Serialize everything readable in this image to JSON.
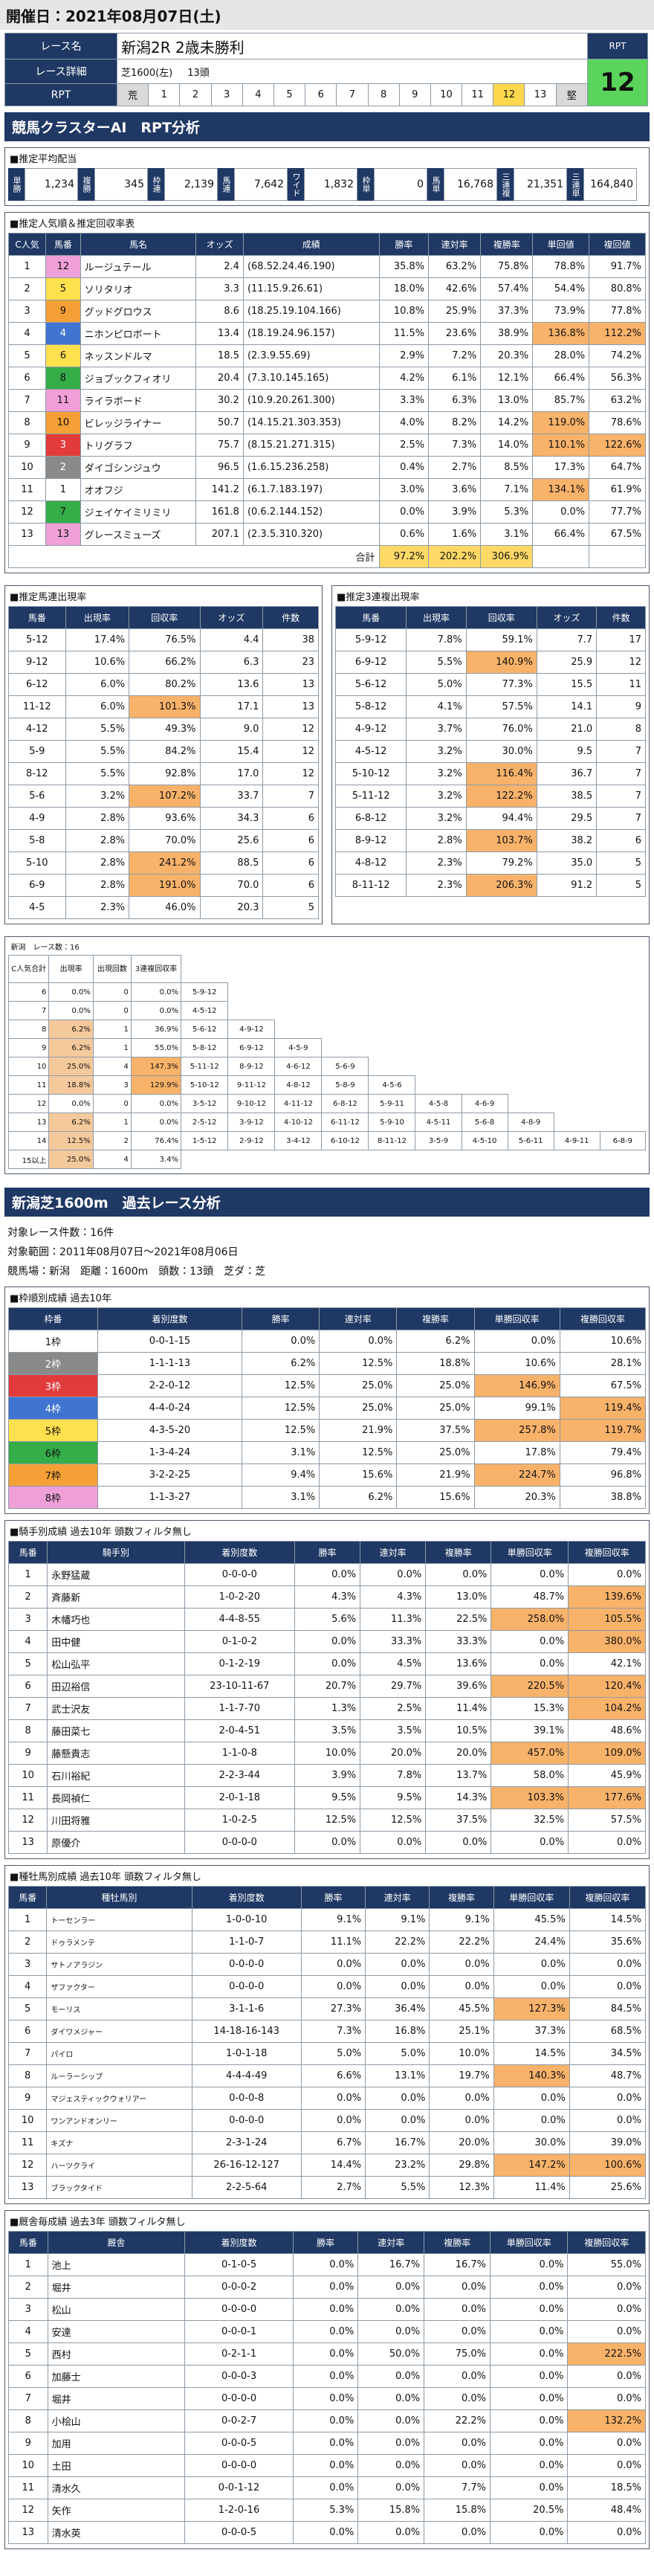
{
  "header": {
    "title": "開催日：2021年08月07日(土)"
  },
  "race": {
    "name_label": "レース名",
    "name": "新潟2R 2歳未勝利",
    "detail_label": "レース詳細",
    "detail": "芝1600(左)",
    "heads": "13頭",
    "rpt_label": "RPT",
    "rpt_scale": [
      "荒",
      "1",
      "2",
      "3",
      "4",
      "5",
      "6",
      "7",
      "8",
      "9",
      "10",
      "11",
      "12",
      "13",
      "堅"
    ],
    "rpt_box_label": "RPT",
    "rpt_value": "12"
  },
  "banner": "競馬クラスターAI　RPT分析",
  "payout": {
    "title": "■推定平均配当",
    "items": [
      {
        "label": "単勝",
        "value": "1,234"
      },
      {
        "label": "複勝",
        "value": "345"
      },
      {
        "label": "枠連",
        "value": "2,139"
      },
      {
        "label": "馬連",
        "value": "7,642"
      },
      {
        "label": "ワイド",
        "value": "1,832"
      },
      {
        "label": "枠単",
        "value": "0"
      },
      {
        "label": "馬単",
        "value": "16,768"
      },
      {
        "label": "三連複",
        "value": "21,351"
      },
      {
        "label": "三連単",
        "value": "164,840"
      }
    ]
  },
  "popularity": {
    "title": "■推定人気順＆推定回収率表",
    "columns": [
      "C人気",
      "馬番",
      "馬名",
      "オッズ",
      "成績",
      "勝率",
      "連対率",
      "複勝率",
      "単回値",
      "複回値"
    ],
    "rows": [
      [
        "1",
        "12",
        "ルージュテール",
        "2.4",
        "(68.52.24.46.190)",
        "35.8%",
        "63.2%",
        "75.8%",
        "78.8%",
        "91.7%"
      ],
      [
        "2",
        "5",
        "ソリタリオ",
        "3.3",
        "(11.15.9.26.61)",
        "18.0%",
        "42.6%",
        "57.4%",
        "54.4%",
        "80.8%"
      ],
      [
        "3",
        "9",
        "グッドグロウス",
        "8.6",
        "(18.25.19.104.166)",
        "10.8%",
        "25.9%",
        "37.3%",
        "73.9%",
        "77.8%"
      ],
      [
        "4",
        "4",
        "ニホンピロボート",
        "13.4",
        "(18.19.24.96.157)",
        "11.5%",
        "23.6%",
        "38.9%",
        "136.8%",
        "112.2%"
      ],
      [
        "5",
        "6",
        "ネッスンドルマ",
        "18.5",
        "(2.3.9.55.69)",
        "2.9%",
        "7.2%",
        "20.3%",
        "28.0%",
        "74.2%"
      ],
      [
        "6",
        "8",
        "ジョブックフィオリ",
        "20.4",
        "(7.3.10.145.165)",
        "4.2%",
        "6.1%",
        "12.1%",
        "66.4%",
        "56.3%"
      ],
      [
        "7",
        "11",
        "ライラボード",
        "30.2",
        "(10.9.20.261.300)",
        "3.3%",
        "6.3%",
        "13.0%",
        "85.7%",
        "63.2%"
      ],
      [
        "8",
        "10",
        "ビレッジライナー",
        "50.7",
        "(14.15.21.303.353)",
        "4.0%",
        "8.2%",
        "14.2%",
        "119.0%",
        "78.6%"
      ],
      [
        "9",
        "3",
        "トリグラフ",
        "75.7",
        "(8.15.21.271.315)",
        "2.5%",
        "7.3%",
        "14.0%",
        "110.1%",
        "122.6%"
      ],
      [
        "10",
        "2",
        "ダイゴシンジュウ",
        "96.5",
        "(1.6.15.236.258)",
        "0.4%",
        "2.7%",
        "8.5%",
        "17.3%",
        "64.7%"
      ],
      [
        "11",
        "1",
        "オオフジ",
        "141.2",
        "(6.1.7.183.197)",
        "3.0%",
        "3.6%",
        "7.1%",
        "134.1%",
        "61.9%"
      ],
      [
        "12",
        "7",
        "ジェイケイミリミリ",
        "161.8",
        "(0.6.2.144.152)",
        "0.0%",
        "3.9%",
        "5.3%",
        "0.0%",
        "77.7%"
      ],
      [
        "13",
        "13",
        "グレースミューズ",
        "207.1",
        "(2.3.5.310.320)",
        "0.6%",
        "1.6%",
        "3.1%",
        "66.4%",
        "67.5%"
      ]
    ],
    "total": {
      "label": "合計",
      "values": [
        "97.2%",
        "202.2%",
        "306.9%"
      ]
    }
  },
  "quinella": {
    "title": "■推定馬連出現率",
    "columns": [
      "馬番",
      "出現率",
      "回収率",
      "オッズ",
      "件数"
    ],
    "rows": [
      [
        "5-12",
        "17.4%",
        "76.5%",
        "4.4",
        "38"
      ],
      [
        "9-12",
        "10.6%",
        "66.2%",
        "6.3",
        "23"
      ],
      [
        "6-12",
        "6.0%",
        "80.2%",
        "13.6",
        "13"
      ],
      [
        "11-12",
        "6.0%",
        "101.3%",
        "17.1",
        "13"
      ],
      [
        "4-12",
        "5.5%",
        "49.3%",
        "9.0",
        "12"
      ],
      [
        "5-9",
        "5.5%",
        "84.2%",
        "15.4",
        "12"
      ],
      [
        "8-12",
        "5.5%",
        "92.8%",
        "17.0",
        "12"
      ],
      [
        "5-6",
        "3.2%",
        "107.2%",
        "33.7",
        "7"
      ],
      [
        "4-9",
        "2.8%",
        "93.6%",
        "34.3",
        "6"
      ],
      [
        "5-8",
        "2.8%",
        "70.0%",
        "25.6",
        "6"
      ],
      [
        "5-10",
        "2.8%",
        "241.2%",
        "88.5",
        "6"
      ],
      [
        "6-9",
        "2.8%",
        "191.0%",
        "70.0",
        "6"
      ],
      [
        "4-5",
        "2.3%",
        "46.0%",
        "20.3",
        "5"
      ]
    ]
  },
  "trio": {
    "title": "■推定3連複出現率",
    "columns": [
      "馬番",
      "出現率",
      "回収率",
      "オッズ",
      "件数"
    ],
    "rows": [
      [
        "5-9-12",
        "7.8%",
        "59.1%",
        "7.7",
        "17"
      ],
      [
        "6-9-12",
        "5.5%",
        "140.9%",
        "25.9",
        "12"
      ],
      [
        "5-6-12",
        "5.0%",
        "77.3%",
        "15.5",
        "11"
      ],
      [
        "5-8-12",
        "4.1%",
        "57.5%",
        "14.1",
        "9"
      ],
      [
        "4-9-12",
        "3.7%",
        "76.0%",
        "21.0",
        "8"
      ],
      [
        "4-5-12",
        "3.2%",
        "30.0%",
        "9.5",
        "7"
      ],
      [
        "5-10-12",
        "3.2%",
        "116.4%",
        "36.7",
        "7"
      ],
      [
        "5-11-12",
        "3.2%",
        "122.2%",
        "38.5",
        "7"
      ],
      [
        "6-8-12",
        "3.2%",
        "94.4%",
        "29.5",
        "7"
      ],
      [
        "8-9-12",
        "2.8%",
        "103.7%",
        "38.2",
        "6"
      ],
      [
        "4-8-12",
        "2.3%",
        "79.2%",
        "35.0",
        "5"
      ],
      [
        "8-11-12",
        "2.3%",
        "206.3%",
        "91.2",
        "5"
      ]
    ]
  },
  "matrix": {
    "title": "新潟　レース数：16",
    "columns": [
      "C人気合計",
      "出現率",
      "出現回数",
      "3連複回収率"
    ],
    "rows": [
      {
        "cells": [
          "6",
          "0.0%",
          "0",
          "0.0%"
        ],
        "combos": [
          "5-9-12"
        ]
      },
      {
        "cells": [
          "7",
          "0.0%",
          "0",
          "0.0%"
        ],
        "combos": [
          "4-5-12"
        ]
      },
      {
        "cells": [
          "8",
          "6.2%",
          "1",
          "36.9%"
        ],
        "combos": [
          "5-6-12",
          "4-9-12"
        ]
      },
      {
        "cells": [
          "9",
          "6.2%",
          "1",
          "55.0%"
        ],
        "combos": [
          "5-8-12",
          "6-9-12",
          "4-5-9"
        ]
      },
      {
        "cells": [
          "10",
          "25.0%",
          "4",
          "147.3%"
        ],
        "combos": [
          "5-11-12",
          "8-9-12",
          "4-6-12",
          "5-6-9"
        ]
      },
      {
        "cells": [
          "11",
          "18.8%",
          "3",
          "129.9%"
        ],
        "combos": [
          "5-10-12",
          "9-11-12",
          "4-8-12",
          "5-8-9",
          "4-5-6"
        ]
      },
      {
        "cells": [
          "12",
          "0.0%",
          "0",
          "0.0%"
        ],
        "combos": [
          "3-5-12",
          "9-10-12",
          "4-11-12",
          "6-8-12",
          "5-9-11",
          "4-5-8",
          "4-6-9"
        ]
      },
      {
        "cells": [
          "13",
          "6.2%",
          "1",
          "0.0%"
        ],
        "combos": [
          "2-5-12",
          "3-9-12",
          "4-10-12",
          "6-11-12",
          "5-9-10",
          "4-5-11",
          "5-6-8",
          "4-8-9"
        ]
      },
      {
        "cells": [
          "14",
          "12.5%",
          "2",
          "76.4%"
        ],
        "combos": [
          "1-5-12",
          "2-9-12",
          "3-4-12",
          "6-10-12",
          "8-11-12",
          "3-5-9",
          "4-5-10",
          "5-6-11",
          "4-9-11",
          "6-8-9"
        ]
      },
      {
        "cells": [
          "15以上",
          "25.0%",
          "4",
          "3.4%"
        ],
        "combos": []
      }
    ]
  },
  "past": {
    "title": "新潟芝1600m　過去レース分析",
    "lines": [
      "対象レース件数：16件",
      "対象範囲：2011年08月07日～2021年08月06日",
      "競馬場：新潟　距離：1600m　頭数：13頭　芝ダ：芝"
    ]
  },
  "frame": {
    "title": "■枠順別成績 過去10年",
    "columns": [
      "枠番",
      "着別度数",
      "勝率",
      "連対率",
      "複勝率",
      "単勝回収率",
      "複勝回収率"
    ],
    "rows": [
      [
        "1枠",
        "0-0-1-15",
        "0.0%",
        "0.0%",
        "6.2%",
        "0.0%",
        "10.6%"
      ],
      [
        "2枠",
        "1-1-1-13",
        "6.2%",
        "12.5%",
        "18.8%",
        "10.6%",
        "28.1%"
      ],
      [
        "3枠",
        "2-2-0-12",
        "12.5%",
        "25.0%",
        "25.0%",
        "146.9%",
        "67.5%"
      ],
      [
        "4枠",
        "4-4-0-24",
        "12.5%",
        "25.0%",
        "25.0%",
        "99.1%",
        "119.4%"
      ],
      [
        "5枠",
        "4-3-5-20",
        "12.5%",
        "21.9%",
        "37.5%",
        "257.8%",
        "119.7%"
      ],
      [
        "6枠",
        "1-3-4-24",
        "3.1%",
        "12.5%",
        "25.0%",
        "17.8%",
        "79.4%"
      ],
      [
        "7枠",
        "3-2-2-25",
        "9.4%",
        "15.6%",
        "21.9%",
        "224.7%",
        "96.8%"
      ],
      [
        "8枠",
        "1-1-3-27",
        "3.1%",
        "6.2%",
        "15.6%",
        "20.3%",
        "38.8%"
      ]
    ]
  },
  "jockey": {
    "title": "■騎手別成績 過去10年 頭数フィルタ無し",
    "columns": [
      "馬番",
      "騎手別",
      "着別度数",
      "勝率",
      "連対率",
      "複勝率",
      "単勝回収率",
      "複勝回収率"
    ],
    "rows": [
      [
        "1",
        "永野猛蔵",
        "0-0-0-0",
        "0.0%",
        "0.0%",
        "0.0%",
        "0.0%",
        "0.0%"
      ],
      [
        "2",
        "斉藤新",
        "1-0-2-20",
        "4.3%",
        "4.3%",
        "13.0%",
        "48.7%",
        "139.6%"
      ],
      [
        "3",
        "木幡巧也",
        "4-4-8-55",
        "5.6%",
        "11.3%",
        "22.5%",
        "258.0%",
        "105.5%"
      ],
      [
        "4",
        "田中健",
        "0-1-0-2",
        "0.0%",
        "33.3%",
        "33.3%",
        "0.0%",
        "380.0%"
      ],
      [
        "5",
        "松山弘平",
        "0-1-2-19",
        "0.0%",
        "4.5%",
        "13.6%",
        "0.0%",
        "42.1%"
      ],
      [
        "6",
        "田辺裕信",
        "23-10-11-67",
        "20.7%",
        "29.7%",
        "39.6%",
        "220.5%",
        "120.4%"
      ],
      [
        "7",
        "武士沢友",
        "1-1-7-70",
        "1.3%",
        "2.5%",
        "11.4%",
        "15.3%",
        "104.2%"
      ],
      [
        "8",
        "藤田菜七",
        "2-0-4-51",
        "3.5%",
        "3.5%",
        "10.5%",
        "39.1%",
        "48.6%"
      ],
      [
        "9",
        "藤懸貴志",
        "1-1-0-8",
        "10.0%",
        "20.0%",
        "20.0%",
        "457.0%",
        "109.0%"
      ],
      [
        "10",
        "石川裕紀",
        "2-2-3-44",
        "3.9%",
        "7.8%",
        "13.7%",
        "58.0%",
        "45.9%"
      ],
      [
        "11",
        "長岡禎仁",
        "2-0-1-18",
        "9.5%",
        "9.5%",
        "14.3%",
        "103.3%",
        "177.6%"
      ],
      [
        "12",
        "川田将雅",
        "1-0-2-5",
        "12.5%",
        "12.5%",
        "37.5%",
        "32.5%",
        "57.5%"
      ],
      [
        "13",
        "原優介",
        "0-0-0-0",
        "0.0%",
        "0.0%",
        "0.0%",
        "0.0%",
        "0.0%"
      ]
    ]
  },
  "sire": {
    "title": "■種牡馬別成績 過去10年 頭数フィルタ無し",
    "columns": [
      "馬番",
      "種牡馬別",
      "着別度数",
      "勝率",
      "連対率",
      "複勝率",
      "単勝回収率",
      "複勝回収率"
    ],
    "rows": [
      [
        "1",
        "トーセンラー",
        "1-0-0-10",
        "9.1%",
        "9.1%",
        "9.1%",
        "45.5%",
        "14.5%"
      ],
      [
        "2",
        "ドゥラメンテ",
        "1-1-0-7",
        "11.1%",
        "22.2%",
        "22.2%",
        "24.4%",
        "35.6%"
      ],
      [
        "3",
        "サトノアラジン",
        "0-0-0-0",
        "0.0%",
        "0.0%",
        "0.0%",
        "0.0%",
        "0.0%"
      ],
      [
        "4",
        "ザファクター",
        "0-0-0-0",
        "0.0%",
        "0.0%",
        "0.0%",
        "0.0%",
        "0.0%"
      ],
      [
        "5",
        "モーリス",
        "3-1-1-6",
        "27.3%",
        "36.4%",
        "45.5%",
        "127.3%",
        "84.5%"
      ],
      [
        "6",
        "ダイワメジャー",
        "14-18-16-143",
        "7.3%",
        "16.8%",
        "25.1%",
        "37.3%",
        "68.5%"
      ],
      [
        "7",
        "パイロ",
        "1-0-1-18",
        "5.0%",
        "5.0%",
        "10.0%",
        "14.5%",
        "34.5%"
      ],
      [
        "8",
        "ルーラーシップ",
        "4-4-4-49",
        "6.6%",
        "13.1%",
        "19.7%",
        "140.3%",
        "48.7%"
      ],
      [
        "9",
        "マジェスティックウォリアー",
        "0-0-0-8",
        "0.0%",
        "0.0%",
        "0.0%",
        "0.0%",
        "0.0%"
      ],
      [
        "10",
        "ワンアンドオンリー",
        "0-0-0-0",
        "0.0%",
        "0.0%",
        "0.0%",
        "0.0%",
        "0.0%"
      ],
      [
        "11",
        "キズナ",
        "2-3-1-24",
        "6.7%",
        "16.7%",
        "20.0%",
        "30.0%",
        "39.0%"
      ],
      [
        "12",
        "ハーツクライ",
        "26-16-12-127",
        "14.4%",
        "23.2%",
        "29.8%",
        "147.2%",
        "100.6%"
      ],
      [
        "13",
        "ブラックタイド",
        "2-2-5-64",
        "2.7%",
        "5.5%",
        "12.3%",
        "11.4%",
        "25.6%"
      ]
    ]
  },
  "stable": {
    "title": "■厩舎毎成績 過去3年 頭数フィルタ無し",
    "columns": [
      "馬番",
      "厩舎",
      "着別度数",
      "勝率",
      "連対率",
      "複勝率",
      "単勝回収率",
      "複勝回収率"
    ],
    "rows": [
      [
        "1",
        "池上",
        "0-1-0-5",
        "0.0%",
        "16.7%",
        "16.7%",
        "0.0%",
        "55.0%"
      ],
      [
        "2",
        "堀井",
        "0-0-0-2",
        "0.0%",
        "0.0%",
        "0.0%",
        "0.0%",
        "0.0%"
      ],
      [
        "3",
        "松山",
        "0-0-0-0",
        "0.0%",
        "0.0%",
        "0.0%",
        "0.0%",
        "0.0%"
      ],
      [
        "4",
        "安達",
        "0-0-0-1",
        "0.0%",
        "0.0%",
        "0.0%",
        "0.0%",
        "0.0%"
      ],
      [
        "5",
        "西村",
        "0-2-1-1",
        "0.0%",
        "50.0%",
        "75.0%",
        "0.0%",
        "222.5%"
      ],
      [
        "6",
        "加藤士",
        "0-0-0-3",
        "0.0%",
        "0.0%",
        "0.0%",
        "0.0%",
        "0.0%"
      ],
      [
        "7",
        "堀井",
        "0-0-0-0",
        "0.0%",
        "0.0%",
        "0.0%",
        "0.0%",
        "0.0%"
      ],
      [
        "8",
        "小桧山",
        "0-0-2-7",
        "0.0%",
        "0.0%",
        "22.2%",
        "0.0%",
        "132.2%"
      ],
      [
        "9",
        "加用",
        "0-0-0-5",
        "0.0%",
        "0.0%",
        "0.0%",
        "0.0%",
        "0.0%"
      ],
      [
        "10",
        "土田",
        "0-0-0-0",
        "0.0%",
        "0.0%",
        "0.0%",
        "0.0%",
        "0.0%"
      ],
      [
        "11",
        "清水久",
        "0-0-1-12",
        "0.0%",
        "0.0%",
        "7.7%",
        "0.0%",
        "18.5%"
      ],
      [
        "12",
        "矢作",
        "1-2-0-16",
        "5.3%",
        "15.8%",
        "15.8%",
        "20.5%",
        "48.4%"
      ],
      [
        "13",
        "清水英",
        "0-0-0-5",
        "0.0%",
        "0.0%",
        "0.0%",
        "0.0%",
        "0.0%"
      ]
    ]
  }
}
